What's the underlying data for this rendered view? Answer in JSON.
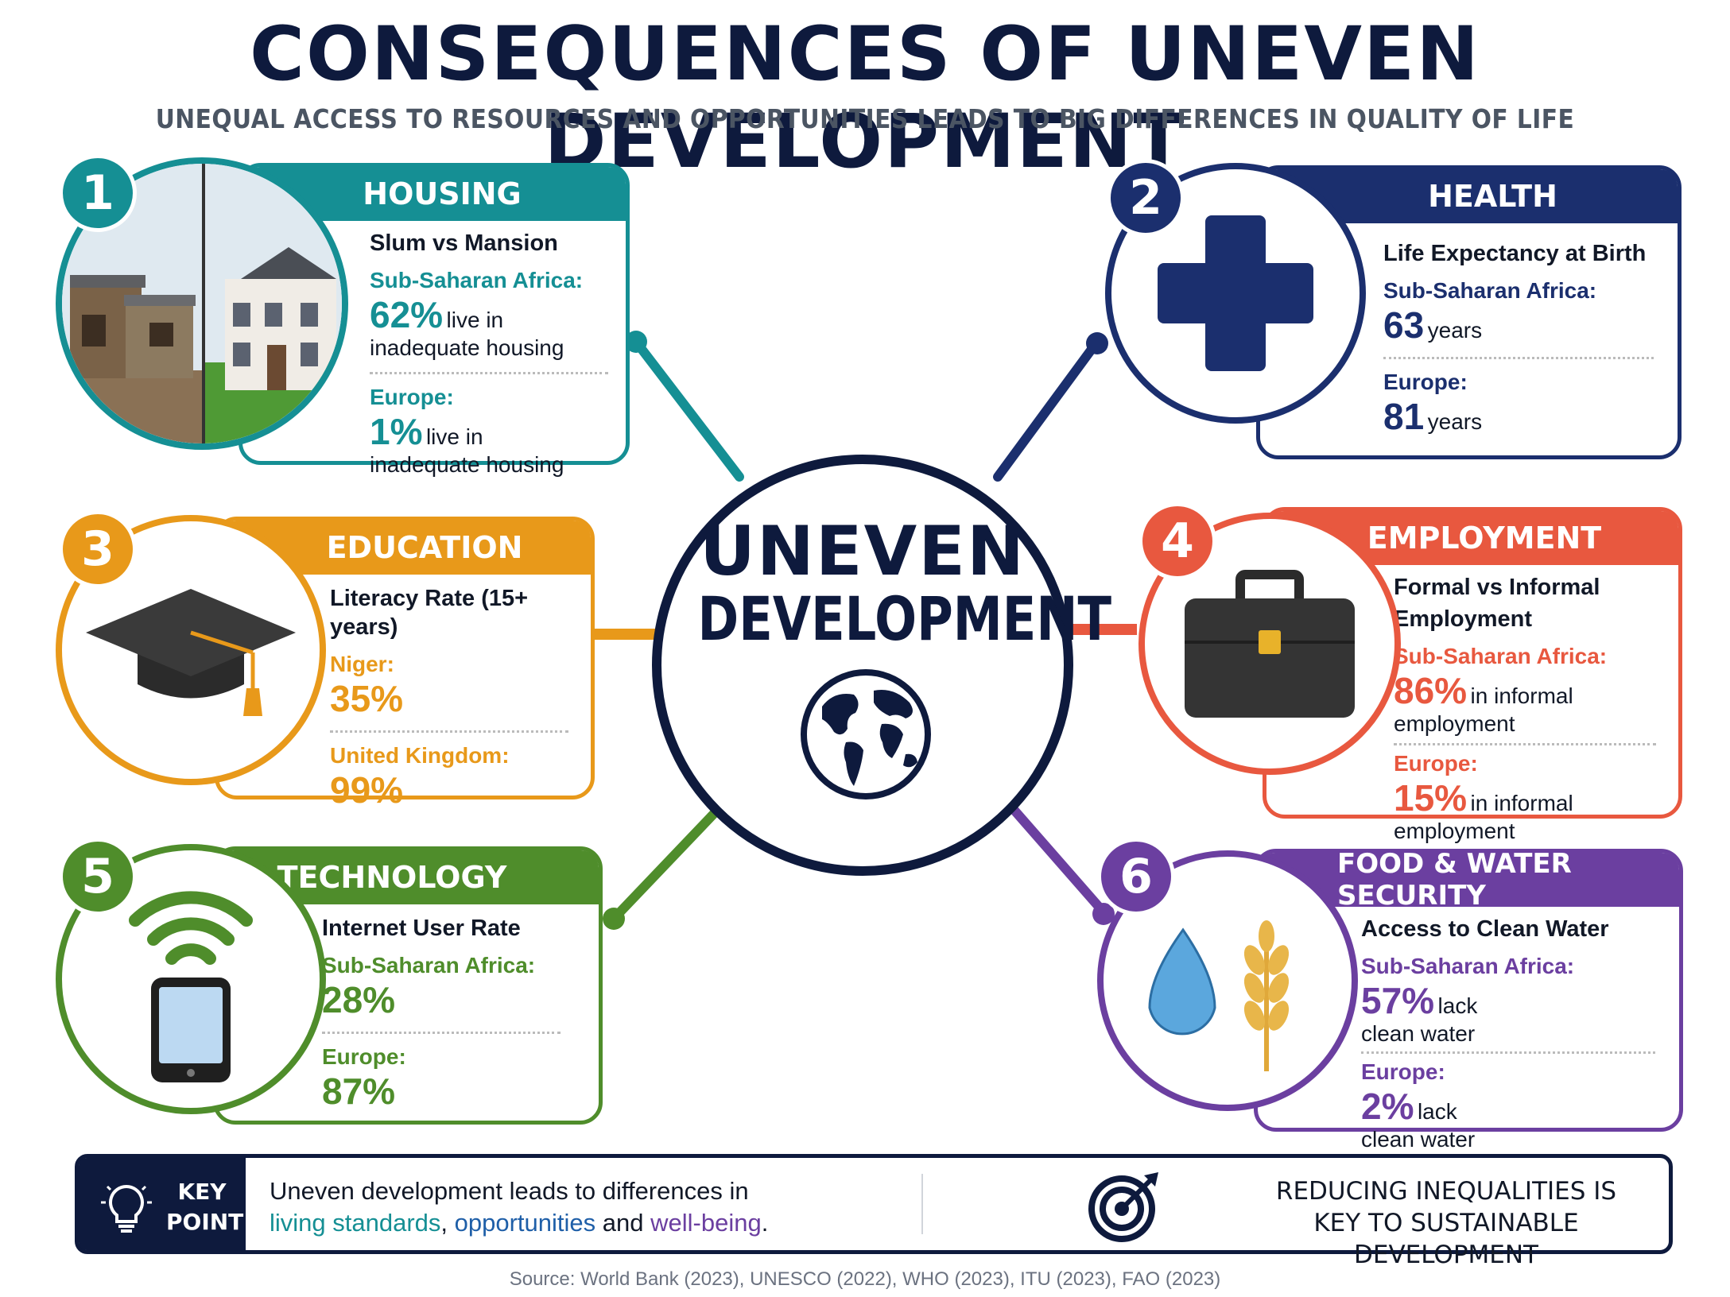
{
  "header": {
    "title": "CONSEQUENCES OF UNEVEN DEVELOPMENT",
    "subtitle": "UNEQUAL ACCESS TO RESOURCES AND OPPORTUNITIES LEADS TO BIG DIFFERENCES IN QUALITY OF LIFE"
  },
  "center": {
    "line1": "UNEVEN",
    "line2": "DEVELOPMENT",
    "icon": "globe-icon"
  },
  "colors": {
    "housing": "#158f94",
    "health": "#1b2f6e",
    "education": "#e8991a",
    "employment": "#e8583f",
    "technology": "#4f8d2b",
    "food": "#6b3fa0",
    "navy": "#0e1a3d"
  },
  "cards": {
    "housing": {
      "number": "1",
      "heading": "HOUSING",
      "metric": "Slum vs Mansion",
      "icon": "slum-mansion-image",
      "r1_label": "Sub-Saharan Africa:",
      "r1_value": "62%",
      "r1_unit": "live in",
      "r1_note": "inadequate housing",
      "r2_label": "Europe:",
      "r2_value": "1%",
      "r2_unit": "live in",
      "r2_note": "inadequate housing"
    },
    "health": {
      "number": "2",
      "heading": "HEALTH",
      "metric": "Life Expectancy at Birth",
      "icon": "medical-cross-icon",
      "r1_label": "Sub-Saharan Africa:",
      "r1_value": "63",
      "r1_unit": "years",
      "r2_label": "Europe:",
      "r2_value": "81",
      "r2_unit": "years"
    },
    "education": {
      "number": "3",
      "heading": "EDUCATION",
      "metric": "Literacy Rate (15+ years)",
      "icon": "graduation-cap-icon",
      "r1_label": "Niger:",
      "r1_value": "35%",
      "r2_label": "United Kingdom:",
      "r2_value": "99%"
    },
    "employment": {
      "number": "4",
      "heading": "EMPLOYMENT",
      "metric_line1": "Formal vs Informal",
      "metric_line2": "Employment",
      "icon": "briefcase-icon",
      "r1_label": "Sub-Saharan Africa:",
      "r1_value": "86%",
      "r1_unit": "in informal",
      "r1_note": "employment",
      "r2_label": "Europe:",
      "r2_value": "15%",
      "r2_unit": "in informal",
      "r2_note": "employment"
    },
    "technology": {
      "number": "5",
      "heading": "TECHNOLOGY",
      "metric": "Internet User Rate",
      "icon": "smartphone-wifi-icon",
      "r1_label": "Sub-Saharan Africa:",
      "r1_value": "28%",
      "r2_label": "Europe:",
      "r2_value": "87%"
    },
    "food": {
      "number": "6",
      "heading": "FOOD & WATER SECURITY",
      "metric": "Access to Clean Water",
      "icon": "water-drop-wheat-icon",
      "r1_label": "Sub-Saharan Africa:",
      "r1_value": "57%",
      "r1_unit": "lack",
      "r1_note": "clean water",
      "r2_label": "Europe:",
      "r2_value": "2%",
      "r2_unit": "lack",
      "r2_note": "clean water"
    }
  },
  "key_point": {
    "label_line1": "KEY",
    "label_line2": "POINT",
    "icon": "lightbulb-icon",
    "text_line1": "Uneven development leads to differences in",
    "hl1": "living standards",
    "sep1": ", ",
    "hl2": "opportunities",
    "sep2": " and ",
    "hl3": "well-being",
    "end": ".",
    "right_icon": "target-icon",
    "right_line1": "REDUCING INEQUALITIES IS",
    "right_line2": "KEY TO SUSTAINABLE DEVELOPMENT"
  },
  "source": "Source: World Bank (2023), UNESCO (2022), WHO (2023), ITU (2023), FAO (2023)"
}
